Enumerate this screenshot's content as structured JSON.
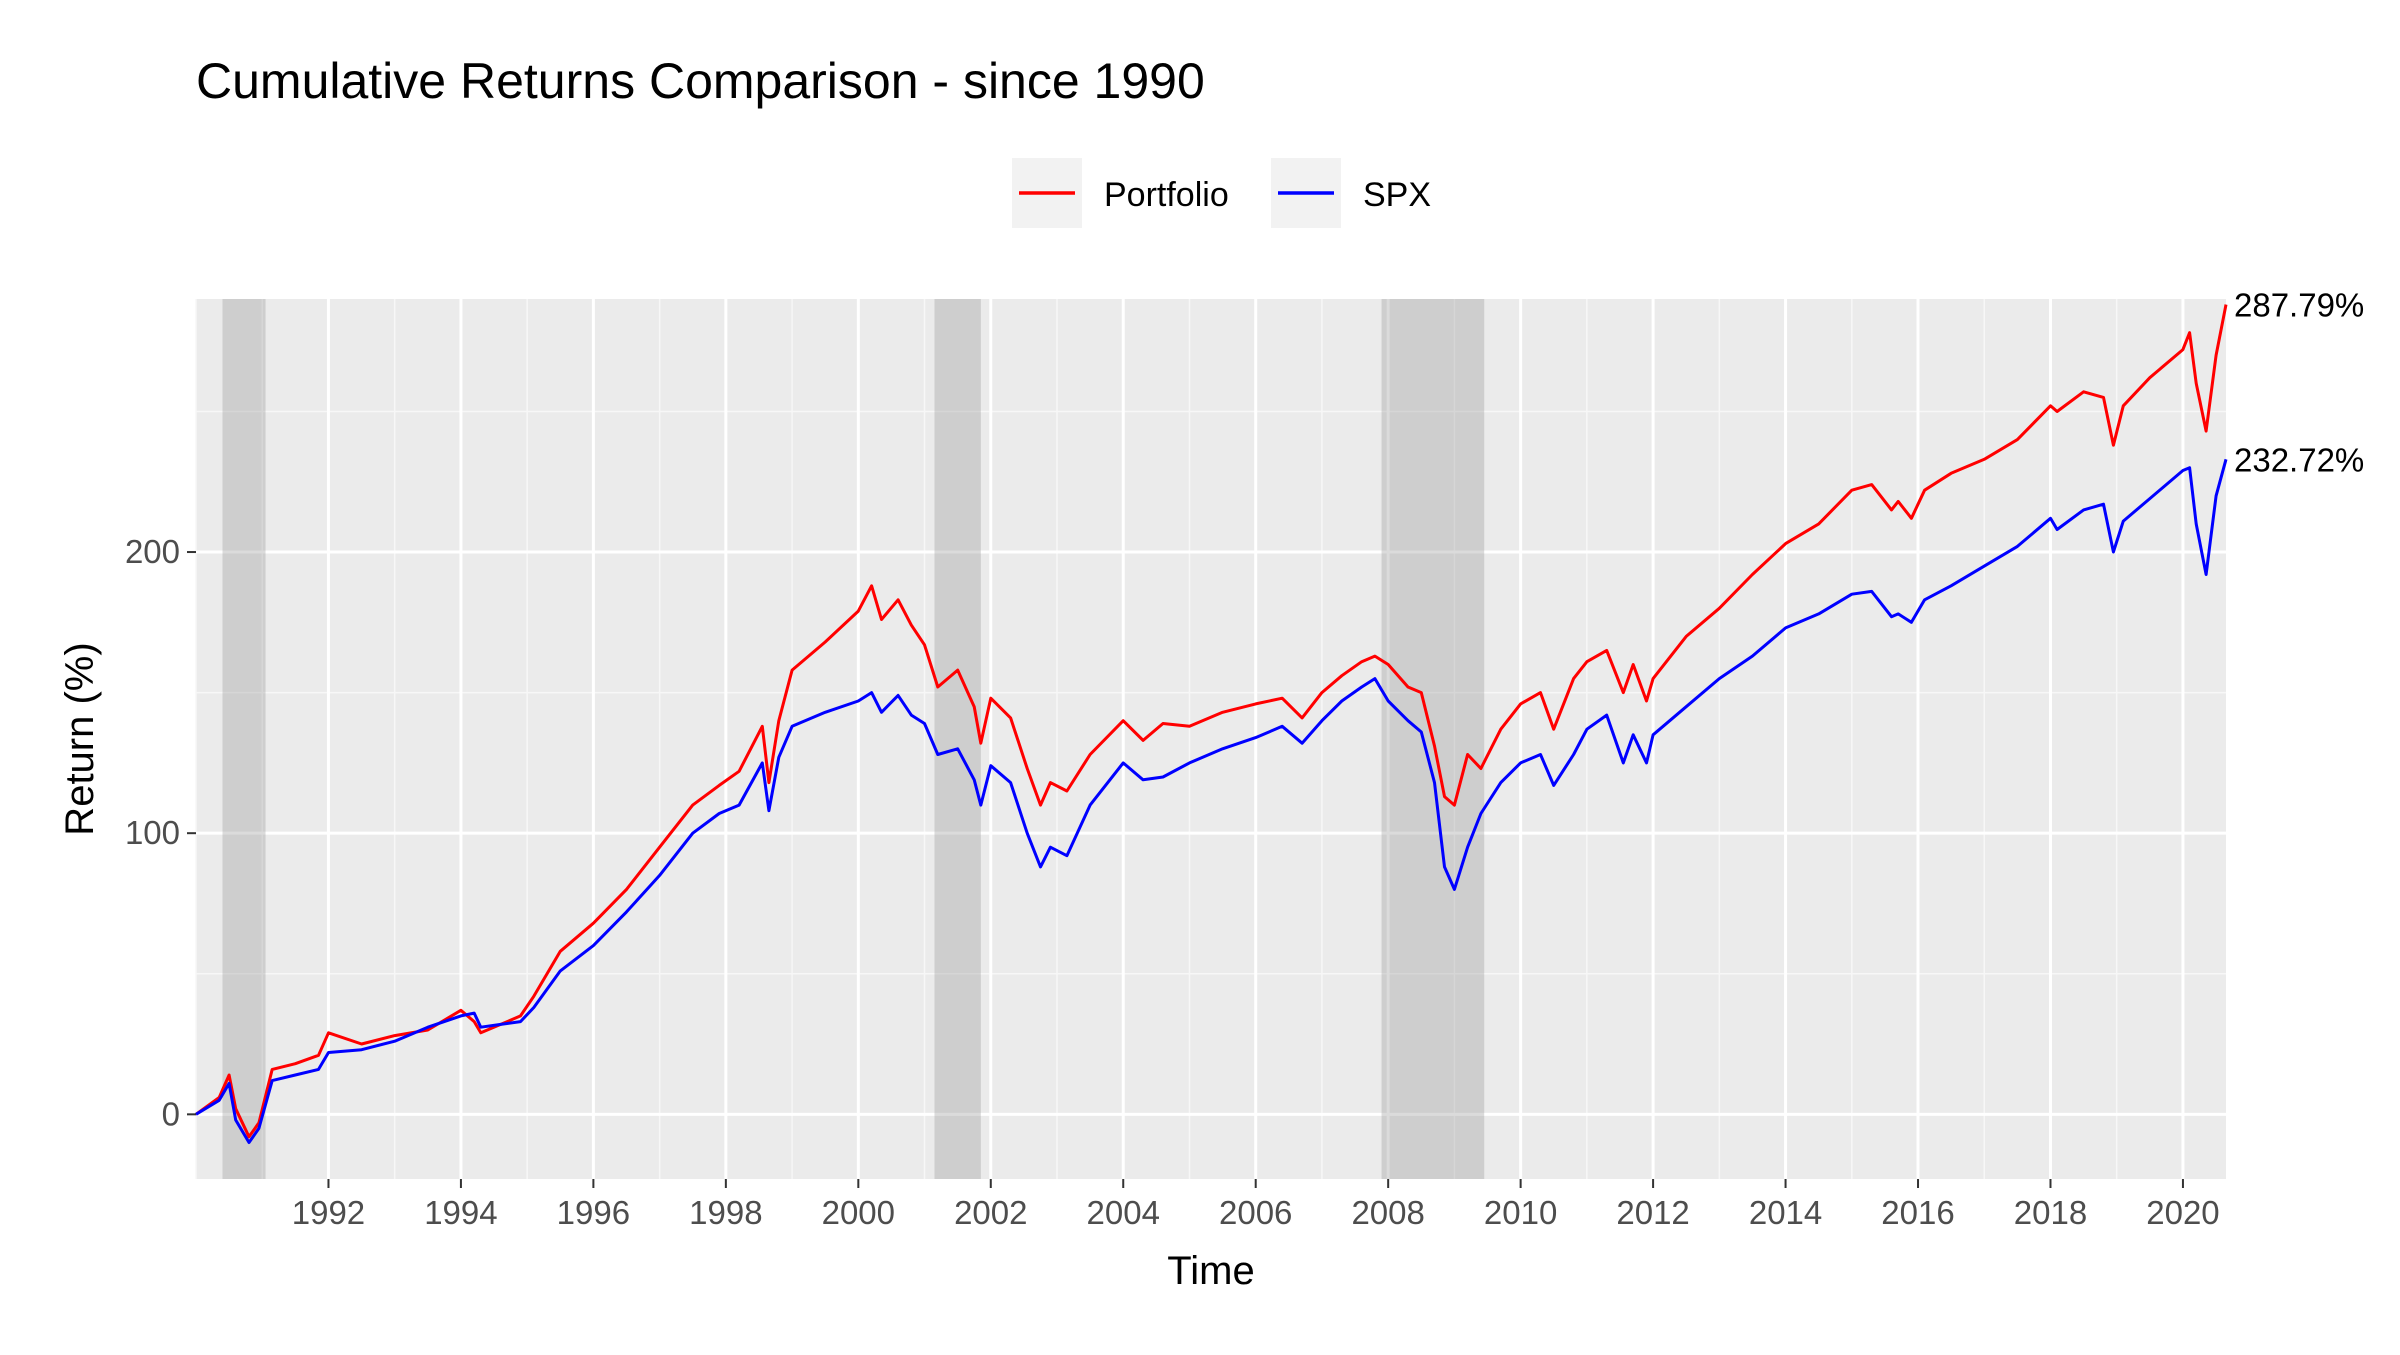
{
  "chart_data": {
    "type": "line",
    "title": "Cumulative Returns Comparison - since 1990",
    "xlabel": "Time",
    "ylabel": "Return (%)",
    "xlim": [
      1990.0,
      2020.65
    ],
    "ylim": [
      -23,
      290
    ],
    "x_ticks": [
      1992,
      1994,
      1996,
      1998,
      2000,
      2002,
      2004,
      2006,
      2008,
      2010,
      2012,
      2014,
      2016,
      2018,
      2020
    ],
    "x_tick_labels": [
      "1992",
      "1994",
      "1996",
      "1998",
      "2000",
      "2002",
      "2004",
      "2006",
      "2008",
      "2010",
      "2012",
      "2014",
      "2016",
      "2018",
      "2020"
    ],
    "y_ticks": [
      0,
      100,
      200
    ],
    "y_tick_labels": [
      "0",
      "100",
      "200"
    ],
    "grid": true,
    "legend_position": "top",
    "recession_bands": [
      [
        1990.4,
        1991.05
      ],
      [
        2001.15,
        2001.85
      ],
      [
        2007.9,
        2009.45
      ]
    ],
    "end_labels": [
      "287.79%",
      "232.72%"
    ],
    "series": [
      {
        "name": "Portfolio",
        "color": "#ff0000",
        "x": [
          1990.0,
          1990.35,
          1990.5,
          1990.6,
          1990.8,
          1990.95,
          1991.15,
          1991.5,
          1991.85,
          1992.0,
          1992.5,
          1993.0,
          1993.5,
          1994.0,
          1994.2,
          1994.3,
          1994.6,
          1994.9,
          1995.1,
          1995.5,
          1996.0,
          1996.5,
          1997.0,
          1997.5,
          1997.9,
          1998.2,
          1998.55,
          1998.65,
          1998.8,
          1999.0,
          1999.5,
          2000.0,
          2000.2,
          2000.35,
          2000.6,
          2000.8,
          2001.0,
          2001.2,
          2001.5,
          2001.75,
          2001.85,
          2002.0,
          2002.3,
          2002.55,
          2002.75,
          2002.9,
          2003.15,
          2003.5,
          2004.0,
          2004.3,
          2004.6,
          2005.0,
          2005.5,
          2006.0,
          2006.4,
          2006.7,
          2007.0,
          2007.3,
          2007.6,
          2007.8,
          2008.0,
          2008.3,
          2008.5,
          2008.7,
          2008.85,
          2009.0,
          2009.2,
          2009.4,
          2009.7,
          2010.0,
          2010.3,
          2010.5,
          2010.8,
          2011.0,
          2011.3,
          2011.55,
          2011.7,
          2011.9,
          2012.0,
          2012.5,
          2013.0,
          2013.5,
          2014.0,
          2014.5,
          2015.0,
          2015.3,
          2015.6,
          2015.7,
          2015.9,
          2016.1,
          2016.5,
          2017.0,
          2017.5,
          2018.0,
          2018.1,
          2018.5,
          2018.8,
          2018.95,
          2019.1,
          2019.5,
          2020.0,
          2020.1,
          2020.2,
          2020.35,
          2020.5,
          2020.65
        ],
        "values": [
          0,
          6,
          14,
          2,
          -8,
          -3,
          16,
          18,
          21,
          29,
          25,
          28,
          30,
          37,
          33,
          29,
          32,
          35,
          42,
          58,
          68,
          80,
          95,
          110,
          117,
          122,
          138,
          118,
          140,
          158,
          168,
          179,
          188,
          176,
          183,
          174,
          167,
          152,
          158,
          145,
          132,
          148,
          141,
          123,
          110,
          118,
          115,
          128,
          140,
          133,
          139,
          138,
          143,
          146,
          148,
          141,
          150,
          156,
          161,
          163,
          160,
          152,
          150,
          131,
          113,
          110,
          128,
          123,
          137,
          146,
          150,
          137,
          155,
          161,
          165,
          150,
          160,
          147,
          155,
          170,
          180,
          192,
          203,
          210,
          222,
          224,
          215,
          218,
          212,
          222,
          228,
          233,
          240,
          252,
          250,
          257,
          255,
          238,
          252,
          262,
          272,
          278,
          260,
          243,
          270,
          288
        ]
      },
      {
        "name": "SPX",
        "color": "#0000ff",
        "x": [
          1990.0,
          1990.35,
          1990.5,
          1990.6,
          1990.8,
          1990.95,
          1991.15,
          1991.5,
          1991.85,
          1992.0,
          1992.5,
          1993.0,
          1993.5,
          1994.0,
          1994.2,
          1994.3,
          1994.6,
          1994.9,
          1995.1,
          1995.5,
          1996.0,
          1996.5,
          1997.0,
          1997.5,
          1997.9,
          1998.2,
          1998.55,
          1998.65,
          1998.8,
          1999.0,
          1999.5,
          2000.0,
          2000.2,
          2000.35,
          2000.6,
          2000.8,
          2001.0,
          2001.2,
          2001.5,
          2001.75,
          2001.85,
          2002.0,
          2002.3,
          2002.55,
          2002.75,
          2002.9,
          2003.15,
          2003.5,
          2004.0,
          2004.3,
          2004.6,
          2005.0,
          2005.5,
          2006.0,
          2006.4,
          2006.7,
          2007.0,
          2007.3,
          2007.6,
          2007.8,
          2008.0,
          2008.3,
          2008.5,
          2008.7,
          2008.85,
          2009.0,
          2009.2,
          2009.4,
          2009.7,
          2010.0,
          2010.3,
          2010.5,
          2010.8,
          2011.0,
          2011.3,
          2011.55,
          2011.7,
          2011.9,
          2012.0,
          2012.5,
          2013.0,
          2013.5,
          2014.0,
          2014.5,
          2015.0,
          2015.3,
          2015.6,
          2015.7,
          2015.9,
          2016.1,
          2016.5,
          2017.0,
          2017.5,
          2018.0,
          2018.1,
          2018.5,
          2018.8,
          2018.95,
          2019.1,
          2019.5,
          2020.0,
          2020.1,
          2020.2,
          2020.35,
          2020.5,
          2020.65
        ],
        "values": [
          0,
          5,
          11,
          -2,
          -10,
          -5,
          12,
          14,
          16,
          22,
          23,
          26,
          31,
          35,
          36,
          31,
          32,
          33,
          38,
          51,
          60,
          72,
          85,
          100,
          107,
          110,
          125,
          108,
          127,
          138,
          143,
          147,
          150,
          143,
          149,
          142,
          139,
          128,
          130,
          119,
          110,
          124,
          118,
          100,
          88,
          95,
          92,
          110,
          125,
          119,
          120,
          125,
          130,
          134,
          138,
          132,
          140,
          147,
          152,
          155,
          147,
          140,
          136,
          118,
          88,
          80,
          95,
          107,
          118,
          125,
          128,
          117,
          128,
          137,
          142,
          125,
          135,
          125,
          135,
          145,
          155,
          163,
          173,
          178,
          185,
          186,
          177,
          178,
          175,
          183,
          188,
          195,
          202,
          212,
          208,
          215,
          217,
          200,
          211,
          219,
          229,
          230,
          210,
          192,
          220,
          233
        ]
      }
    ]
  }
}
